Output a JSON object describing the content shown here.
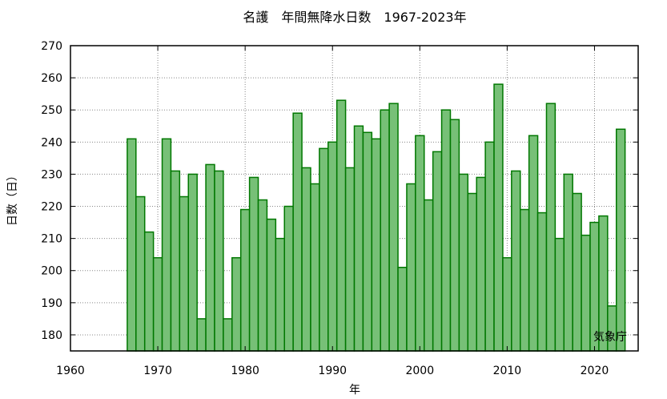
{
  "chart_data": {
    "type": "bar",
    "title": "名護　年間無降水日数　1967-2023年",
    "xlabel": "年",
    "ylabel": "日数（日）",
    "credit": "気象庁",
    "xlim": [
      1960,
      2025
    ],
    "ylim": [
      175,
      270
    ],
    "xticks": [
      1960,
      1970,
      1980,
      1990,
      2000,
      2010,
      2020
    ],
    "yticks": [
      180,
      190,
      200,
      210,
      220,
      230,
      240,
      250,
      260,
      270
    ],
    "grid": true,
    "colors": {
      "bar_fill": "#77c077",
      "bar_edge": "#007700"
    },
    "x": [
      1967,
      1968,
      1969,
      1970,
      1971,
      1972,
      1973,
      1974,
      1975,
      1976,
      1977,
      1978,
      1979,
      1980,
      1981,
      1982,
      1983,
      1984,
      1985,
      1986,
      1987,
      1988,
      1989,
      1990,
      1991,
      1992,
      1993,
      1994,
      1995,
      1996,
      1997,
      1998,
      1999,
      2000,
      2001,
      2002,
      2003,
      2004,
      2005,
      2006,
      2007,
      2008,
      2009,
      2010,
      2011,
      2012,
      2013,
      2014,
      2015,
      2016,
      2017,
      2018,
      2019,
      2020,
      2021,
      2022,
      2023
    ],
    "values": [
      241,
      223,
      212,
      204,
      241,
      231,
      223,
      230,
      185,
      233,
      231,
      185,
      204,
      219,
      229,
      222,
      216,
      210,
      220,
      249,
      232,
      227,
      238,
      240,
      253,
      232,
      245,
      243,
      241,
      250,
      252,
      201,
      227,
      242,
      222,
      237,
      250,
      247,
      230,
      224,
      229,
      240,
      258,
      204,
      231,
      219,
      242,
      218,
      252,
      210,
      230,
      224,
      211,
      215,
      217,
      189,
      244
    ]
  }
}
